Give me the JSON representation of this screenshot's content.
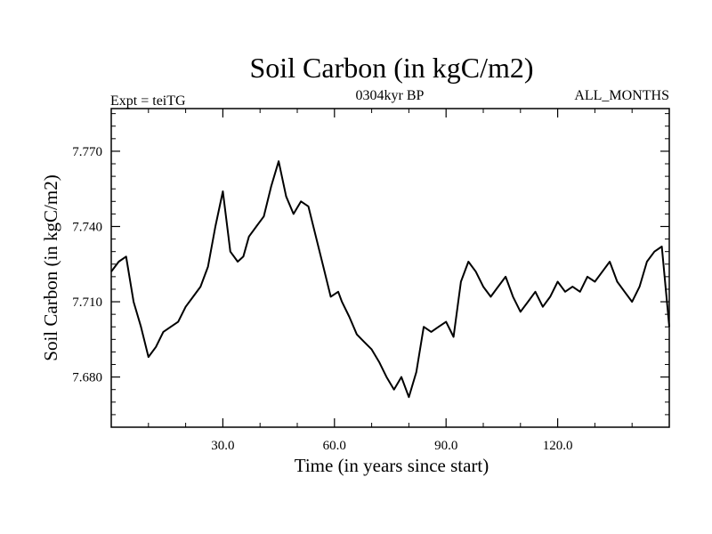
{
  "chart_data": {
    "type": "line",
    "title": "Soil Carbon (in kgC/m2)",
    "subtitle": "0304kyr BP",
    "left_note": "Expt = teiTG",
    "right_note": "ALL_MONTHS",
    "xlabel": "Time (in years since start)",
    "ylabel": "Soil Carbon (in kgC/m2)",
    "xlim": [
      0,
      150
    ],
    "ylim": [
      7.66,
      7.787
    ],
    "xticks": [
      30,
      60,
      90,
      120
    ],
    "xtick_labels": [
      "30.0",
      "60.0",
      "90.0",
      "120.0"
    ],
    "yticks": [
      7.68,
      7.71,
      7.74,
      7.77
    ],
    "ytick_labels": [
      "7.680",
      "7.710",
      "7.740",
      "7.770"
    ],
    "grid": false,
    "series": [
      {
        "color": "#000000",
        "x": [
          0,
          2,
          4,
          6,
          8,
          10,
          12,
          14,
          16,
          18,
          20,
          22,
          24,
          26,
          28,
          30,
          32,
          34,
          35.5,
          37,
          39,
          41,
          43,
          45,
          47,
          49,
          51,
          53,
          55,
          57,
          59,
          61,
          62,
          64,
          66,
          68,
          70,
          72,
          74,
          76,
          78,
          80,
          82,
          84,
          86,
          88,
          90,
          92,
          94,
          96,
          98,
          100,
          102,
          104,
          106,
          108,
          110,
          112,
          114,
          116,
          118,
          120,
          122,
          124,
          126,
          128,
          130,
          132,
          134,
          136,
          138,
          140,
          142,
          144,
          146,
          148,
          150
        ],
        "y": [
          7.722,
          7.726,
          7.728,
          7.71,
          7.7,
          7.688,
          7.692,
          7.698,
          7.7,
          7.702,
          7.708,
          7.712,
          7.716,
          7.724,
          7.74,
          7.754,
          7.73,
          7.726,
          7.728,
          7.736,
          7.74,
          7.744,
          7.756,
          7.766,
          7.752,
          7.745,
          7.75,
          7.748,
          7.736,
          7.724,
          7.712,
          7.714,
          7.71,
          7.704,
          7.697,
          7.694,
          7.691,
          7.686,
          7.68,
          7.675,
          7.68,
          7.672,
          7.682,
          7.7,
          7.698,
          7.7,
          7.702,
          7.696,
          7.718,
          7.726,
          7.722,
          7.716,
          7.712,
          7.716,
          7.72,
          7.712,
          7.706,
          7.71,
          7.714,
          7.708,
          7.712,
          7.718,
          7.714,
          7.716,
          7.714,
          7.72,
          7.718,
          7.722,
          7.726,
          7.718,
          7.714,
          7.71,
          7.716,
          7.726,
          7.73,
          7.732,
          7.7
        ]
      }
    ]
  }
}
